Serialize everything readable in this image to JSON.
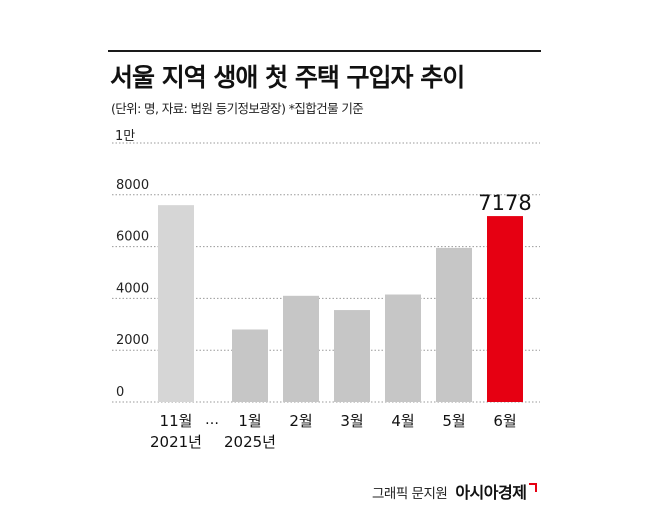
{
  "title": "서울 지역 생애 첫 주택 구입자 추이",
  "subtitle": "(단위: 명, 자료: 법원 등기정보광장) *집합건물 기준",
  "unit_label": "1만",
  "credit": {
    "text": "그래픽 문지원",
    "brand": "아시아경제"
  },
  "colors": {
    "past": "#d6d6d6",
    "current": "#c6c6c6",
    "highlight": "#e60012",
    "grid": "#9a9a9a"
  },
  "chart_data": {
    "type": "bar",
    "categories": [
      "11월",
      "1월",
      "2월",
      "3월",
      "4월",
      "5월",
      "6월"
    ],
    "category_years": [
      "2021년",
      "2025년",
      "",
      "",
      "",
      "",
      ""
    ],
    "gap_marker": "…",
    "values": [
      7600,
      2800,
      4100,
      3550,
      4150,
      5950,
      7178
    ],
    "highlight_index": 6,
    "data_labels": [
      "",
      "",
      "",
      "",
      "",
      "",
      "7178"
    ],
    "yticks": [
      0,
      2000,
      4000,
      6000,
      8000
    ],
    "ytick_labels": [
      "0",
      "2000",
      "4000",
      "6000",
      "8000"
    ],
    "top_tick_label": "1만",
    "ylim": [
      0,
      10000
    ],
    "grid": true
  }
}
